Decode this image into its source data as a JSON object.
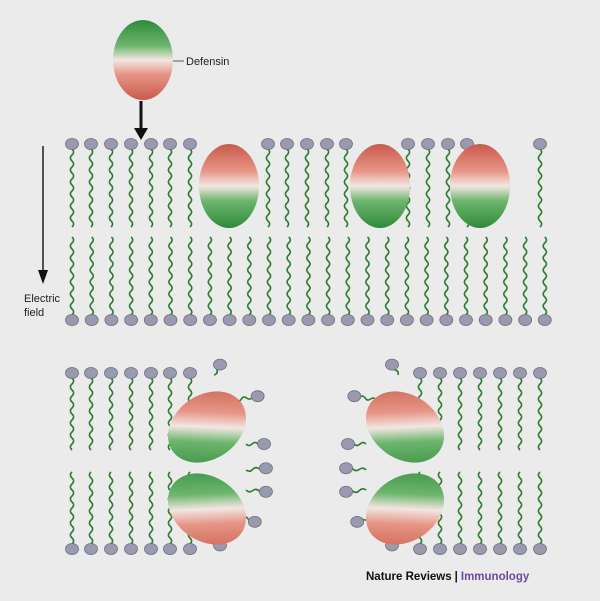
{
  "labels": {
    "defensin": "Defensin",
    "electric_field": [
      "Electric",
      "field"
    ]
  },
  "credit": {
    "journal": "Nature Reviews",
    "separator": "|",
    "section": "Immunology"
  },
  "colors": {
    "background": "#ebebeb",
    "lipid_head": "#9a9aae",
    "lipid_head_stroke": "#6e6e84",
    "lipid_tail": "#2e7d32",
    "defensin_green": "#2f8a3b",
    "defensin_red": "#d0685a",
    "defensin_light": "#f2e6e2",
    "arrow": "#111111",
    "credit_accent": "#6b4b9e"
  }
}
